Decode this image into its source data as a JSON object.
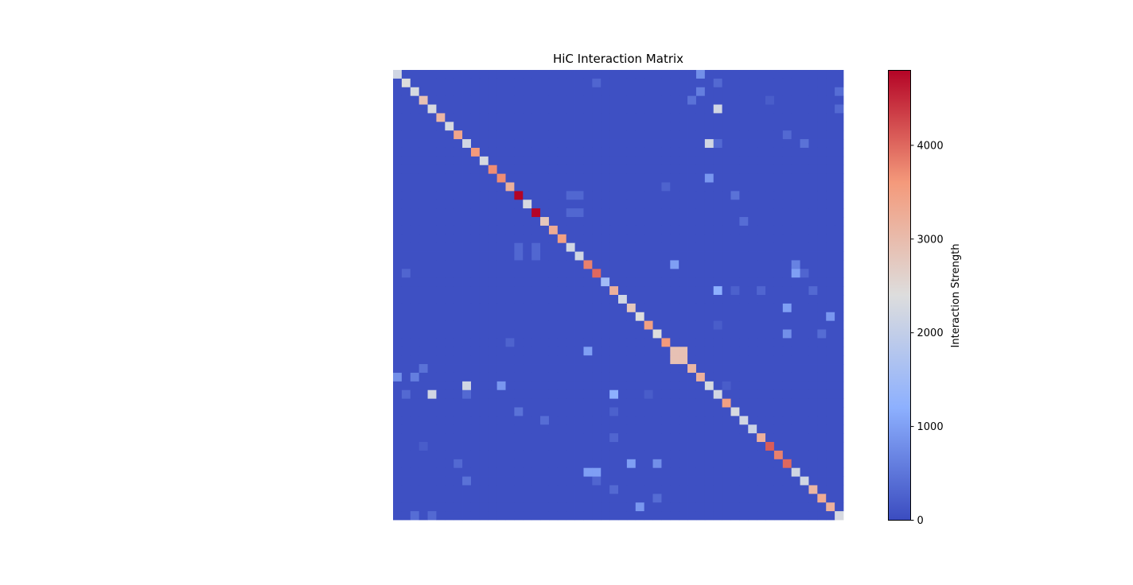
{
  "chart_data": {
    "type": "heatmap",
    "title": "HiC Interaction Matrix",
    "size": 52,
    "xlabel": "",
    "ylabel": "",
    "axes_visible": false,
    "grid": false,
    "colormap": "coolwarm",
    "colormap_stops": [
      "#3b4cc0",
      "#8db0fe",
      "#dddddd",
      "#f49a7b",
      "#b40426"
    ],
    "vmin": 0,
    "vmax": 4800,
    "background_value": 50,
    "diagonal": [
      2200,
      2400,
      2300,
      2900,
      2300,
      3100,
      2300,
      3400,
      2200,
      3600,
      2300,
      3700,
      3700,
      3200,
      4800,
      2300,
      4800,
      2800,
      3300,
      3500,
      2200,
      2200,
      3800,
      4000,
      1500,
      3200,
      2200,
      2800,
      2400,
      3500,
      2400,
      3600,
      2200,
      3100,
      3100,
      3200,
      2300,
      2200,
      3500,
      2300,
      2200,
      2100,
      3200,
      4100,
      3800,
      4000,
      2200,
      2200,
      3100,
      3300,
      3200,
      2300
    ],
    "off_diagonal": [
      [
        2,
        35,
        600
      ],
      [
        35,
        2,
        600
      ],
      [
        3,
        34,
        450
      ],
      [
        34,
        3,
        450
      ],
      [
        8,
        36,
        2200
      ],
      [
        36,
        8,
        2200
      ],
      [
        8,
        47,
        450
      ],
      [
        47,
        8,
        450
      ],
      [
        1,
        23,
        300
      ],
      [
        23,
        1,
        300
      ],
      [
        12,
        36,
        900
      ],
      [
        36,
        12,
        900
      ],
      [
        14,
        20,
        320
      ],
      [
        20,
        14,
        320
      ],
      [
        14,
        21,
        320
      ],
      [
        21,
        14,
        320
      ],
      [
        16,
        20,
        320
      ],
      [
        20,
        16,
        320
      ],
      [
        16,
        21,
        320
      ],
      [
        21,
        16,
        320
      ],
      [
        17,
        40,
        400
      ],
      [
        40,
        17,
        400
      ],
      [
        21,
        52,
        350
      ],
      [
        22,
        46,
        650
      ],
      [
        46,
        22,
        650
      ],
      [
        23,
        47,
        300
      ],
      [
        47,
        23,
        300
      ],
      [
        25,
        42,
        300
      ],
      [
        42,
        25,
        300
      ],
      [
        25,
        37,
        1200
      ],
      [
        37,
        25,
        1200
      ],
      [
        28,
        50,
        900
      ],
      [
        50,
        28,
        900
      ],
      [
        30,
        45,
        800
      ],
      [
        45,
        30,
        800
      ],
      [
        32,
        22,
        1000
      ],
      [
        22,
        32,
        1000
      ],
      [
        35,
        0,
        800
      ],
      [
        0,
        35,
        800
      ],
      [
        37,
        4,
        2200
      ],
      [
        4,
        37,
        2200
      ],
      [
        37,
        8,
        350
      ],
      [
        8,
        37,
        350
      ],
      [
        36,
        38,
        200
      ],
      [
        43,
        3,
        200
      ],
      [
        3,
        43,
        200
      ],
      [
        45,
        27,
        1000
      ],
      [
        27,
        45,
        1000
      ],
      [
        46,
        22,
        1000
      ],
      [
        48,
        25,
        350
      ],
      [
        25,
        48,
        350
      ],
      [
        49,
        30,
        380
      ],
      [
        30,
        49,
        380
      ],
      [
        51,
        2,
        400
      ],
      [
        2,
        51,
        400
      ],
      [
        51,
        4,
        350
      ],
      [
        4,
        51,
        350
      ],
      [
        52,
        4,
        300
      ],
      [
        52,
        5,
        300
      ],
      [
        23,
        46,
        1000
      ],
      [
        46,
        23,
        1000
      ],
      [
        18,
        52,
        300
      ],
      [
        52,
        18,
        300
      ],
      [
        39,
        14,
        450
      ],
      [
        14,
        39,
        450
      ],
      [
        37,
        1,
        350
      ],
      [
        1,
        37,
        350
      ],
      [
        7,
        45,
        350
      ],
      [
        45,
        7,
        350
      ],
      [
        29,
        37,
        200
      ],
      [
        37,
        29,
        200
      ],
      [
        13,
        31,
        280
      ],
      [
        31,
        13,
        280
      ],
      [
        25,
        39,
        250
      ],
      [
        39,
        25,
        250
      ]
    ],
    "blocks": [
      {
        "rows": [
          32,
          33
        ],
        "cols": [
          32,
          33
        ],
        "value": 2900
      }
    ],
    "colorbar": {
      "label": "Interaction Strength",
      "ticks": [
        0,
        1000,
        2000,
        3000,
        4000
      ]
    }
  }
}
